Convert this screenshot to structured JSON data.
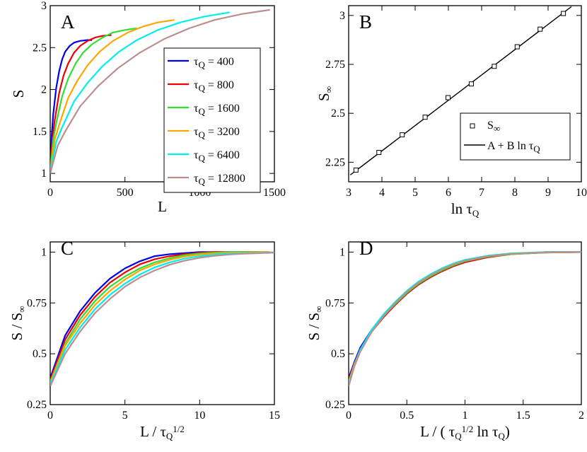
{
  "chart_data": [
    {
      "id": "A",
      "type": "line",
      "panel_label": "A",
      "xlabel": "L",
      "ylabel": "S",
      "xlim": [
        0,
        1500
      ],
      "ylim": [
        0.9,
        3.0
      ],
      "xticks": [
        0,
        500,
        1000,
        1500
      ],
      "yticks": [
        1,
        1.5,
        2,
        2.5,
        3
      ],
      "legend": "right-middle",
      "series": [
        {
          "label": "τ",
          "sub": "Q",
          "value": " = 400",
          "color": "#0000ee",
          "x": [
            0,
            10,
            20,
            40,
            60,
            80,
            100,
            130,
            160,
            200,
            250,
            280
          ],
          "y": [
            1.0,
            1.45,
            1.7,
            2.02,
            2.22,
            2.36,
            2.45,
            2.52,
            2.56,
            2.58,
            2.59,
            2.59
          ]
        },
        {
          "label": "τ",
          "sub": "Q",
          "value": " = 800",
          "color": "#ee0000",
          "x": [
            0,
            15,
            30,
            60,
            90,
            120,
            160,
            200,
            250,
            300,
            350,
            410
          ],
          "y": [
            1.0,
            1.42,
            1.63,
            1.96,
            2.17,
            2.31,
            2.44,
            2.52,
            2.58,
            2.62,
            2.64,
            2.65
          ]
        },
        {
          "label": "τ",
          "sub": "Q",
          "value": " = 1600",
          "color": "#33dd33",
          "x": [
            0,
            20,
            40,
            80,
            120,
            170,
            220,
            280,
            350,
            420,
            500,
            580
          ],
          "y": [
            1.0,
            1.4,
            1.6,
            1.92,
            2.13,
            2.31,
            2.44,
            2.54,
            2.62,
            2.68,
            2.71,
            2.73
          ]
        },
        {
          "label": "τ",
          "sub": "Q",
          "value": " = 3200",
          "color": "#ffa500",
          "x": [
            0,
            30,
            60,
            120,
            180,
            250,
            330,
            420,
            520,
            620,
            720,
            830
          ],
          "y": [
            1.0,
            1.4,
            1.58,
            1.9,
            2.1,
            2.29,
            2.45,
            2.58,
            2.68,
            2.75,
            2.8,
            2.83
          ]
        },
        {
          "label": "τ",
          "sub": "Q",
          "value": " = 6400",
          "color": "#00eeee",
          "x": [
            0,
            40,
            80,
            160,
            250,
            350,
            460,
            580,
            720,
            870,
            1030,
            1200
          ],
          "y": [
            1.0,
            1.38,
            1.55,
            1.86,
            2.08,
            2.28,
            2.45,
            2.59,
            2.71,
            2.8,
            2.87,
            2.92
          ]
        },
        {
          "label": "τ",
          "sub": "Q",
          "value": " = 12800",
          "color": "#bb8f8f",
          "x": [
            0,
            50,
            100,
            200,
            320,
            450,
            600,
            760,
            930,
            1100,
            1280,
            1470
          ],
          "y": [
            1.0,
            1.33,
            1.5,
            1.8,
            2.04,
            2.25,
            2.44,
            2.6,
            2.73,
            2.83,
            2.9,
            2.95
          ]
        }
      ]
    },
    {
      "id": "B",
      "type": "scatter",
      "panel_label": "B",
      "xlabel": "ln τ",
      "xlabel_sub": "Q",
      "ylabel": "S",
      "ylabel_sub": "∞",
      "xlim": [
        3,
        10
      ],
      "ylim": [
        2.15,
        3.05
      ],
      "xticks": [
        3,
        4,
        5,
        6,
        7,
        8,
        9,
        10
      ],
      "yticks": [
        2.25,
        2.5,
        2.75,
        3
      ],
      "ytick_labels": [
        "2.25",
        "2.5",
        "2.75",
        "3"
      ],
      "legend": "middle-right",
      "points": {
        "label": "S",
        "sub": "∞",
        "x": [
          3.22,
          3.91,
          4.61,
          5.3,
          5.99,
          6.69,
          7.38,
          8.07,
          8.76,
          9.46
        ],
        "y": [
          2.21,
          2.3,
          2.39,
          2.48,
          2.58,
          2.65,
          2.74,
          2.84,
          2.93,
          3.01
        ]
      },
      "fit": {
        "label": "A + B ln τ",
        "sub": "Q",
        "x": [
          3.05,
          9.7
        ],
        "y": [
          2.185,
          3.045
        ]
      }
    },
    {
      "id": "C",
      "type": "line",
      "panel_label": "C",
      "xlabel": "L  /  τ",
      "xlabel_sub": "Q",
      "xlabel_sup": "1/2",
      "ylabel": "S  /  S",
      "ylabel_sub": "∞",
      "xlim": [
        0,
        15
      ],
      "ylim": [
        0.25,
        1.05
      ],
      "xticks": [
        0,
        5,
        10,
        15
      ],
      "yticks": [
        0.25,
        0.5,
        0.75,
        1
      ],
      "ytick_labels": [
        "0.25",
        "0.5",
        "0.75",
        "1"
      ],
      "series": [
        {
          "color": "#0000ee",
          "x": [
            0,
            1,
            2,
            3,
            4,
            5,
            6,
            7,
            8,
            9,
            10,
            11,
            12,
            14
          ],
          "y": [
            0.38,
            0.59,
            0.71,
            0.8,
            0.87,
            0.92,
            0.955,
            0.98,
            0.99,
            0.995,
            1.0,
            1.0,
            1.0,
            1.0
          ]
        },
        {
          "color": "#ee0000",
          "x": [
            0,
            1,
            2,
            3,
            4,
            5,
            6,
            7,
            8,
            9,
            10,
            11,
            12,
            14.6
          ],
          "y": [
            0.37,
            0.57,
            0.69,
            0.78,
            0.85,
            0.9,
            0.94,
            0.965,
            0.98,
            0.99,
            0.996,
            1.0,
            1.0,
            1.0
          ]
        },
        {
          "color": "#33dd33",
          "x": [
            0,
            1,
            2,
            3,
            4,
            5,
            6,
            7,
            8,
            9,
            10,
            11,
            12,
            14.5
          ],
          "y": [
            0.36,
            0.55,
            0.67,
            0.76,
            0.83,
            0.88,
            0.92,
            0.95,
            0.97,
            0.985,
            0.993,
            0.997,
            1.0,
            1.0
          ]
        },
        {
          "color": "#ffa500",
          "x": [
            0,
            1,
            2,
            3,
            4,
            5,
            6,
            7,
            8,
            9,
            10,
            11,
            12,
            14.7
          ],
          "y": [
            0.36,
            0.54,
            0.65,
            0.74,
            0.81,
            0.865,
            0.91,
            0.94,
            0.962,
            0.978,
            0.988,
            0.994,
            0.997,
            1.0
          ]
        },
        {
          "color": "#00eeee",
          "x": [
            0,
            1,
            2,
            3,
            4,
            5,
            6,
            7,
            8,
            9,
            10,
            11,
            12,
            15
          ],
          "y": [
            0.35,
            0.52,
            0.63,
            0.72,
            0.79,
            0.845,
            0.89,
            0.925,
            0.95,
            0.968,
            0.98,
            0.988,
            0.993,
            0.998
          ]
        },
        {
          "color": "#bb8f8f",
          "x": [
            0,
            1,
            2,
            3,
            4,
            5,
            6,
            7,
            8,
            9,
            10,
            11,
            12,
            13,
            15
          ],
          "y": [
            0.34,
            0.5,
            0.61,
            0.7,
            0.77,
            0.83,
            0.875,
            0.91,
            0.938,
            0.958,
            0.972,
            0.982,
            0.988,
            0.992,
            0.997
          ]
        }
      ]
    },
    {
      "id": "D",
      "type": "line",
      "panel_label": "D",
      "xlabel": "L  /  ( τ",
      "xlabel_sub": "Q",
      "xlabel_sup": "1/2",
      "xlabel_tail": " ln τ",
      "xlabel_tail_sub": "Q",
      "xlabel_close": ")",
      "ylabel": "S  /  S",
      "ylabel_sub": "∞",
      "xlim": [
        0,
        2
      ],
      "ylim": [
        0.25,
        1.05
      ],
      "xticks": [
        0,
        0.5,
        1,
        1.5,
        2
      ],
      "yticks": [
        0.25,
        0.5,
        0.75,
        1
      ],
      "ytick_labels": [
        "0.25",
        "0.5",
        "0.75",
        "1"
      ],
      "series": [
        {
          "color": "#0000ee",
          "x": [
            0,
            0.05,
            0.1,
            0.2,
            0.3,
            0.4,
            0.5,
            0.6,
            0.7,
            0.8,
            0.9,
            1.0,
            1.2,
            1.4,
            1.7,
            2.0
          ],
          "y": [
            0.38,
            0.46,
            0.53,
            0.62,
            0.69,
            0.75,
            0.8,
            0.845,
            0.88,
            0.91,
            0.935,
            0.955,
            0.98,
            0.992,
            1.0,
            1.0
          ]
        },
        {
          "color": "#ee0000",
          "x": [
            0,
            0.05,
            0.1,
            0.2,
            0.3,
            0.4,
            0.5,
            0.6,
            0.7,
            0.8,
            0.9,
            1.0,
            1.2,
            1.4,
            1.7,
            2.0
          ],
          "y": [
            0.37,
            0.45,
            0.52,
            0.61,
            0.68,
            0.74,
            0.795,
            0.84,
            0.875,
            0.905,
            0.93,
            0.95,
            0.975,
            0.99,
            0.998,
            1.0
          ]
        },
        {
          "color": "#33dd33",
          "x": [
            0,
            0.05,
            0.1,
            0.2,
            0.3,
            0.4,
            0.5,
            0.6,
            0.7,
            0.8,
            0.9,
            1.0,
            1.2,
            1.4,
            1.7,
            2.0
          ],
          "y": [
            0.36,
            0.45,
            0.52,
            0.61,
            0.685,
            0.745,
            0.8,
            0.845,
            0.88,
            0.91,
            0.935,
            0.955,
            0.978,
            0.99,
            0.998,
            1.0
          ]
        },
        {
          "color": "#ffa500",
          "x": [
            0,
            0.05,
            0.1,
            0.2,
            0.3,
            0.4,
            0.5,
            0.6,
            0.7,
            0.8,
            0.9,
            1.0,
            1.2,
            1.4,
            1.7,
            2.0
          ],
          "y": [
            0.36,
            0.45,
            0.52,
            0.615,
            0.69,
            0.75,
            0.805,
            0.85,
            0.885,
            0.915,
            0.94,
            0.958,
            0.98,
            0.992,
            0.999,
            1.0
          ]
        },
        {
          "color": "#00eeee",
          "x": [
            0,
            0.05,
            0.1,
            0.2,
            0.3,
            0.4,
            0.5,
            0.6,
            0.7,
            0.8,
            0.9,
            1.0,
            1.2,
            1.4,
            1.7,
            2.0
          ],
          "y": [
            0.35,
            0.44,
            0.52,
            0.62,
            0.695,
            0.755,
            0.81,
            0.855,
            0.89,
            0.92,
            0.944,
            0.962,
            0.983,
            0.994,
            1.0,
            1.0
          ]
        },
        {
          "color": "#bb8f8f",
          "x": [
            0,
            0.05,
            0.1,
            0.2,
            0.3,
            0.4,
            0.5,
            0.6,
            0.7,
            0.8,
            0.9,
            1.0,
            1.2,
            1.4,
            1.7,
            2.0
          ],
          "y": [
            0.34,
            0.44,
            0.51,
            0.61,
            0.685,
            0.75,
            0.805,
            0.85,
            0.885,
            0.915,
            0.94,
            0.958,
            0.98,
            0.992,
            0.999,
            1.0
          ]
        }
      ]
    }
  ]
}
